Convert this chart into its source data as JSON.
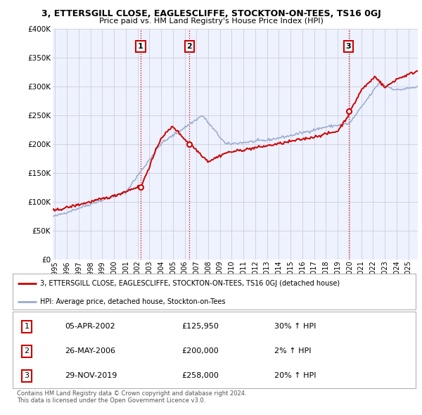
{
  "title": "3, ETTERSGILL CLOSE, EAGLESCLIFFE, STOCKTON-ON-TEES, TS16 0GJ",
  "subtitle": "Price paid vs. HM Land Registry's House Price Index (HPI)",
  "ylabel_ticks": [
    "£0",
    "£50K",
    "£100K",
    "£150K",
    "£200K",
    "£250K",
    "£300K",
    "£350K",
    "£400K"
  ],
  "ytick_values": [
    0,
    50000,
    100000,
    150000,
    200000,
    250000,
    300000,
    350000,
    400000
  ],
  "ylim": [
    0,
    400000
  ],
  "xlim_start": 1994.8,
  "xlim_end": 2025.8,
  "sale_dates": [
    2002.27,
    2006.4,
    2019.92
  ],
  "sale_prices": [
    125950,
    200000,
    258000
  ],
  "sale_labels": [
    "1",
    "2",
    "3"
  ],
  "vline_color": "#cc0000",
  "vline_style": ":",
  "property_line_color": "#cc0000",
  "hpi_line_color": "#99aacc",
  "legend_property_label": "3, ETTERSGILL CLOSE, EAGLESCLIFFE, STOCKTON-ON-TEES, TS16 0GJ (detached house)",
  "legend_hpi_label": "HPI: Average price, detached house, Stockton-on-Tees",
  "table_rows": [
    [
      "1",
      "05-APR-2002",
      "£125,950",
      "30% ↑ HPI"
    ],
    [
      "2",
      "26-MAY-2006",
      "£200,000",
      "2% ↑ HPI"
    ],
    [
      "3",
      "29-NOV-2019",
      "£258,000",
      "20% ↑ HPI"
    ]
  ],
  "footnote": "Contains HM Land Registry data © Crown copyright and database right 2024.\nThis data is licensed under the Open Government Licence v3.0.",
  "background_color": "#ffffff",
  "plot_bg_color": "#eef2ff",
  "grid_color": "#ccccdd"
}
